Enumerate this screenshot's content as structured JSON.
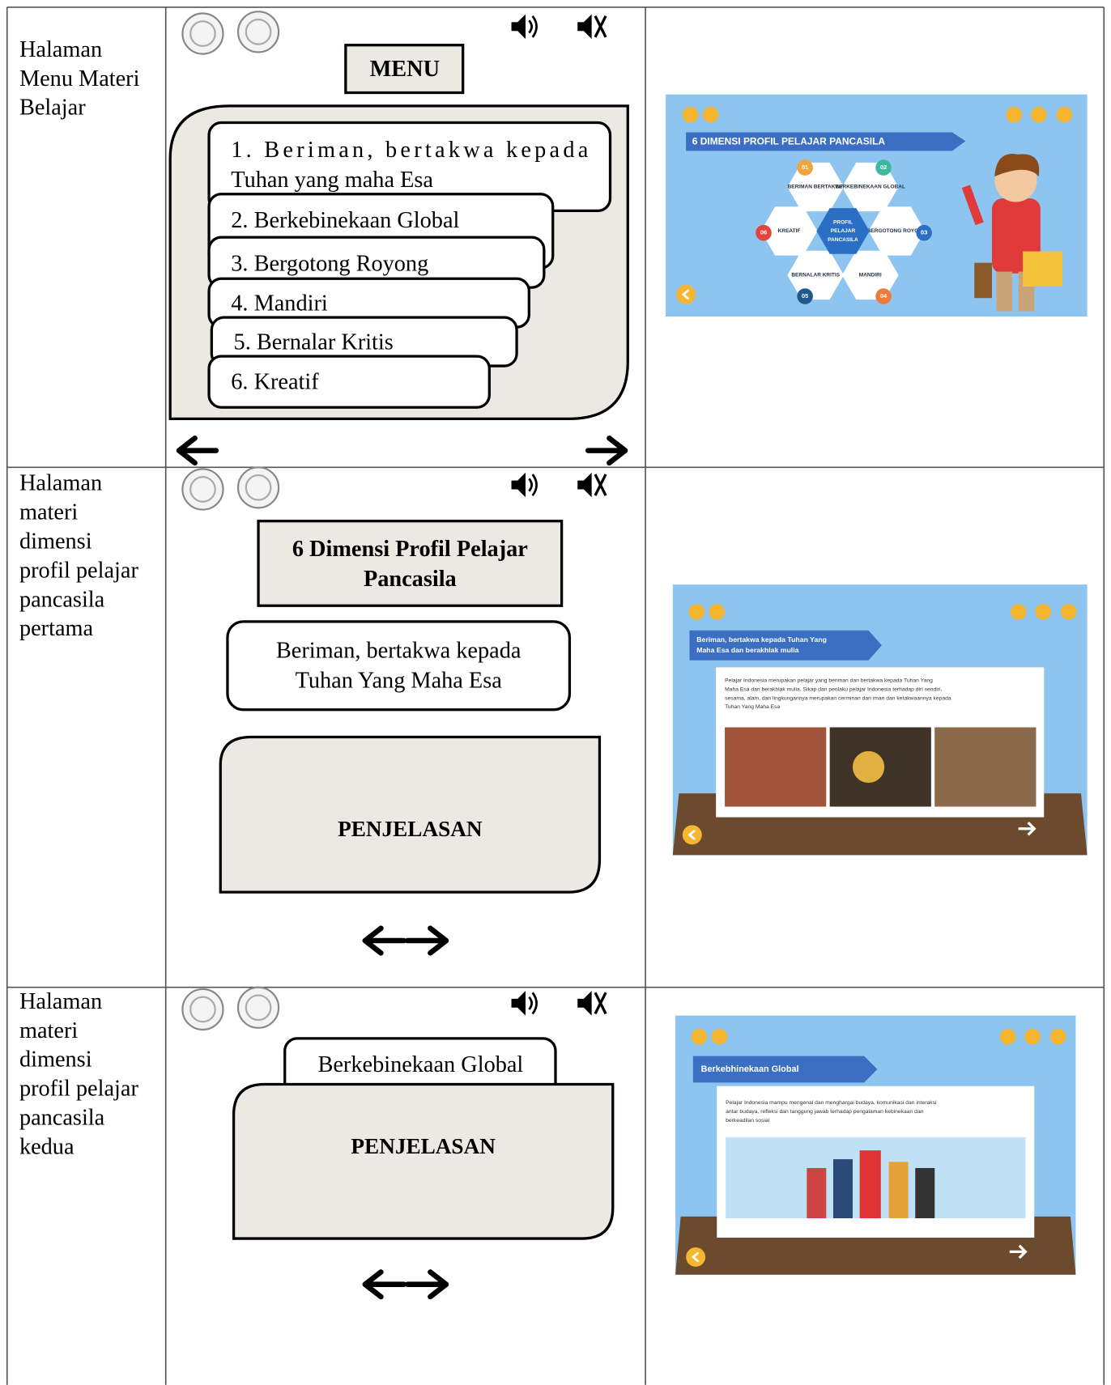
{
  "rows": [
    {
      "label": [
        "Halaman",
        "Menu Materi",
        "Belajar"
      ],
      "wireframe": {
        "title": "MENU",
        "items": [
          [
            "1. Beriman,  bertakwa  kepada",
            "Tuhan yang maha Esa"
          ],
          [
            "2. Berkebinekaan Global"
          ],
          [
            "3. Bergotong Royong"
          ],
          [
            "4. Mandiri"
          ],
          [
            "5. Bernalar Kritis"
          ],
          [
            "6. Kreatif"
          ]
        ]
      },
      "screenshot": {
        "banner": "6 DIMENSI PROFIL PELAJAR PANCASILA",
        "center": [
          "PROFIL",
          "PELAJAR",
          "PANCASILA"
        ],
        "hexes": [
          "BERIMAN BERTAKWA",
          "BERKEBINEKAAN GLOBAL",
          "BERGOTONG ROYONG",
          "MANDIRI",
          "BERNALAR KRITIS",
          "KREATIF"
        ],
        "numbers": [
          "01",
          "02",
          "03",
          "04",
          "05",
          "06"
        ]
      }
    },
    {
      "label": [
        "Halaman",
        "materi",
        "dimensi",
        "profil pelajar",
        "pancasila",
        "pertama"
      ],
      "wireframe": {
        "title": [
          "6 Dimensi Profil Pelajar",
          "Pancasila"
        ],
        "subtitle": [
          "Beriman, bertakwa kepada",
          "Tuhan Yang Maha Esa"
        ],
        "body": "PENJELASAN"
      },
      "screenshot": {
        "banner": [
          "Beriman, bertakwa kepada Tuhan Yang",
          "Maha Esa dan berakhlak mulia"
        ],
        "paragraph": [
          "Pelajar Indonesia merupakan pelajar yang beriman dan bertakwa kepada Tuhan Yang",
          "Maha Esa dan berakhlak mulia. Sikap dan perilaku pelajar Indonesia terhadap diri sendiri,",
          "sesama, alam, dan lingkungannya merupakan cerminan dari iman dan ketakwaannya kepada",
          "Tuhan Yang Maha Esa"
        ]
      }
    },
    {
      "label": [
        "Halaman",
        "materi",
        "dimensi",
        "profil pelajar",
        "pancasila",
        "kedua"
      ],
      "wireframe": {
        "subtitle": "Berkebinekaan Global",
        "body": "PENJELASAN"
      },
      "screenshot": {
        "banner": "Berkebhinekaan Global",
        "paragraph": [
          "Pelajar Indonesia mampu mengenal dan menghargai budaya, komunikasi dan interaksi",
          "antar budaya, refleksi dan tanggung jawab terhadap pengalaman kebinekaan dan",
          "berkeadilan sosial"
        ]
      }
    }
  ]
}
